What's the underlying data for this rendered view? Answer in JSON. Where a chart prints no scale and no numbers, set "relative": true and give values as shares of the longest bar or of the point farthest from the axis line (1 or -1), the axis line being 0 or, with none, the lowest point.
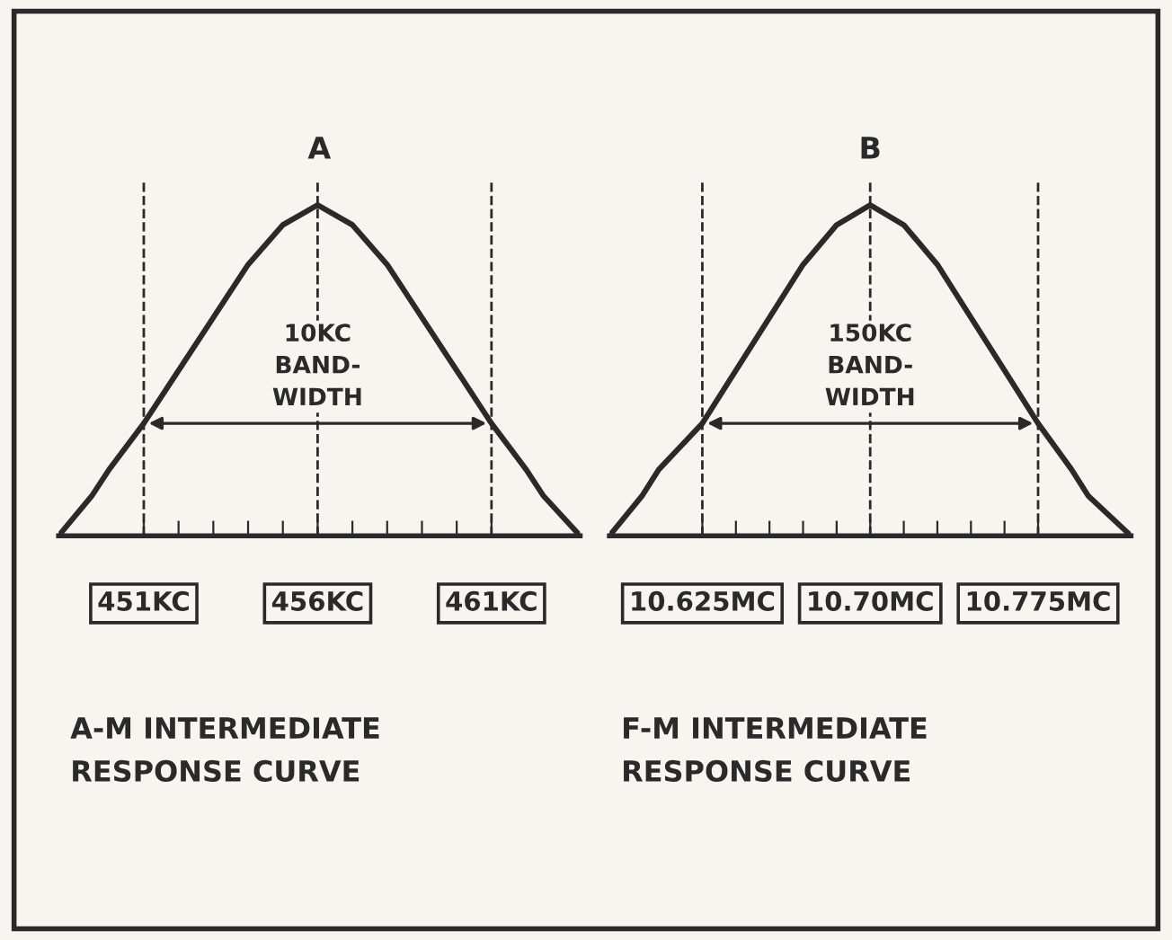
{
  "chart_data": [
    {
      "type": "line",
      "title": "A",
      "relative": true,
      "tick_labels": "x",
      "grid": false,
      "marker": "none",
      "line_style": "solid",
      "x": [
        448.55,
        449.5,
        450,
        451,
        452,
        453,
        454,
        455,
        456,
        457,
        458,
        459,
        460,
        461,
        462,
        462.5,
        463.55
      ],
      "series": [
        {
          "color": "#2a2a2a",
          "values": [
            0,
            0.12,
            0.2,
            0.34,
            0.5,
            0.66,
            0.82,
            0.94,
            1,
            0.94,
            0.82,
            0.66,
            0.5,
            0.34,
            0.2,
            0.12,
            0
          ]
        }
      ],
      "xlim": [
        448.55,
        463.55
      ],
      "xticks": [
        {
          "value": 451,
          "label": "451KC"
        },
        {
          "value": 452,
          "label": null
        },
        {
          "value": 453,
          "label": null
        },
        {
          "value": 454,
          "label": null
        },
        {
          "value": 455,
          "label": null
        },
        {
          "value": 456,
          "label": "456KC"
        },
        {
          "value": 457,
          "label": null
        },
        {
          "value": 458,
          "label": null
        },
        {
          "value": 459,
          "label": null
        },
        {
          "value": 460,
          "label": null
        },
        {
          "value": 461,
          "label": "461KC"
        }
      ],
      "ref_lines": [
        {
          "axis": "x",
          "value": 451,
          "line_style": "dashed"
        },
        {
          "axis": "x",
          "value": 456,
          "line_style": "dashed"
        },
        {
          "axis": "x",
          "value": 461,
          "line_style": "dashed"
        }
      ],
      "annotations": [
        {
          "text": "10KC\nBAND-\nWIDTH",
          "x": 456,
          "y": 0.34
        },
        "A-M INTERMEDIATE\nRESPONSE CURVE"
      ]
    },
    {
      "type": "line",
      "title": "B",
      "relative": true,
      "tick_labels": "x",
      "grid": false,
      "marker": "none",
      "line_style": "solid",
      "x": [
        10.5835,
        10.598,
        10.6055,
        10.625,
        10.64,
        10.655,
        10.67,
        10.685,
        10.7,
        10.715,
        10.73,
        10.745,
        10.76,
        10.775,
        10.79,
        10.7975,
        10.8165
      ],
      "series": [
        {
          "color": "#2a2a2a",
          "values": [
            0,
            0.12,
            0.2,
            0.34,
            0.5,
            0.66,
            0.82,
            0.94,
            1,
            0.94,
            0.82,
            0.66,
            0.5,
            0.34,
            0.2,
            0.12,
            0
          ]
        }
      ],
      "xlim": [
        10.5835,
        10.8165
      ],
      "xticks": [
        {
          "value": 10.625,
          "label": "10.625MC"
        },
        {
          "value": 10.64,
          "label": null
        },
        {
          "value": 10.655,
          "label": null
        },
        {
          "value": 10.67,
          "label": null
        },
        {
          "value": 10.685,
          "label": null
        },
        {
          "value": 10.7,
          "label": "10.70MC"
        },
        {
          "value": 10.715,
          "label": null
        },
        {
          "value": 10.73,
          "label": null
        },
        {
          "value": 10.745,
          "label": null
        },
        {
          "value": 10.76,
          "label": null
        },
        {
          "value": 10.775,
          "label": "10.775MC"
        }
      ],
      "ref_lines": [
        {
          "axis": "x",
          "value": 10.625,
          "line_style": "dashed"
        },
        {
          "axis": "x",
          "value": 10.7,
          "line_style": "dashed"
        },
        {
          "axis": "x",
          "value": 10.775,
          "line_style": "dashed"
        }
      ],
      "annotations": [
        {
          "text": "150KC\nBAND-\nWIDTH",
          "x": 10.7,
          "y": 0.34
        },
        "F-M INTERMEDIATE\nRESPONSE CURVE"
      ]
    }
  ]
}
